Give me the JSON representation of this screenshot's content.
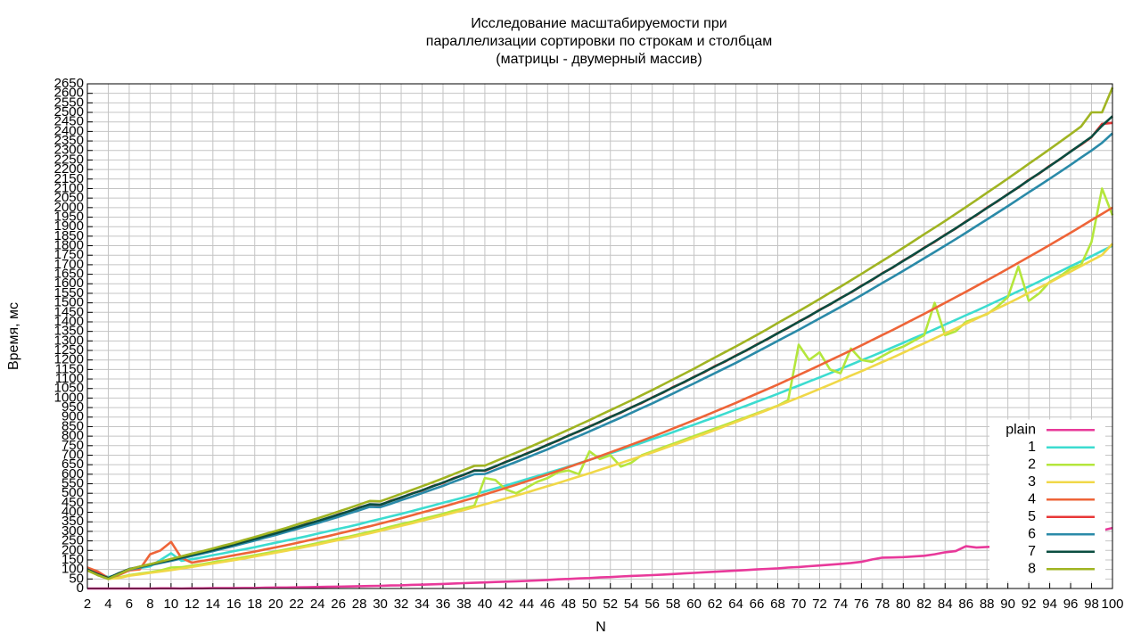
{
  "chart_data": {
    "type": "line",
    "title": [
      "Исследование масштабируемости при",
      "параллелизации сортировки по строкам и столбцам",
      "(матрицы - двумерный массив)"
    ],
    "xlabel": "N",
    "ylabel": "Время, мс",
    "x": [
      2,
      3,
      4,
      5,
      6,
      7,
      8,
      9,
      10,
      11,
      12,
      13,
      14,
      15,
      16,
      17,
      18,
      19,
      20,
      21,
      22,
      23,
      24,
      25,
      26,
      27,
      28,
      29,
      30,
      31,
      32,
      33,
      34,
      35,
      36,
      37,
      38,
      39,
      40,
      41,
      42,
      43,
      44,
      45,
      46,
      47,
      48,
      49,
      50,
      51,
      52,
      53,
      54,
      55,
      56,
      57,
      58,
      59,
      60,
      61,
      62,
      63,
      64,
      65,
      66,
      67,
      68,
      69,
      70,
      71,
      72,
      73,
      74,
      75,
      76,
      77,
      78,
      79,
      80,
      81,
      82,
      83,
      84,
      85,
      86,
      87,
      88,
      89,
      90,
      91,
      92,
      93,
      94,
      95,
      96,
      97,
      98,
      99,
      100
    ],
    "xlim": [
      2,
      100
    ],
    "xticks": [
      2,
      4,
      6,
      8,
      10,
      12,
      14,
      16,
      18,
      20,
      22,
      24,
      26,
      28,
      30,
      32,
      34,
      36,
      38,
      40,
      42,
      44,
      46,
      48,
      50,
      52,
      54,
      56,
      58,
      60,
      62,
      64,
      66,
      68,
      70,
      72,
      74,
      76,
      78,
      80,
      82,
      84,
      86,
      88,
      90,
      92,
      94,
      96,
      98,
      100
    ],
    "ylim": [
      0,
      2650
    ],
    "yticks": [
      0,
      50,
      100,
      150,
      200,
      250,
      300,
      350,
      400,
      450,
      500,
      550,
      600,
      650,
      700,
      750,
      800,
      850,
      900,
      950,
      1000,
      1050,
      1100,
      1150,
      1200,
      1250,
      1300,
      1350,
      1400,
      1450,
      1500,
      1550,
      1600,
      1650,
      1700,
      1750,
      1800,
      1850,
      1900,
      1950,
      2000,
      2050,
      2100,
      2150,
      2200,
      2250,
      2300,
      2350,
      2400,
      2450,
      2500,
      2550,
      2600,
      2650
    ],
    "grid": true,
    "legend": "lower right",
    "series": [
      {
        "name": "plain",
        "color": "#e8399a",
        "values": [
          0,
          0,
          0,
          0,
          0,
          0,
          0,
          1,
          1,
          0,
          1,
          1,
          2,
          2,
          2,
          3,
          3,
          4,
          5,
          5,
          6,
          7,
          8,
          9,
          10,
          11,
          12,
          13,
          14,
          16,
          17,
          19,
          20,
          22,
          24,
          26,
          28,
          30,
          32,
          34,
          36,
          38,
          40,
          42,
          45,
          48,
          50,
          53,
          55,
          58,
          60,
          63,
          66,
          68,
          70,
          73,
          76,
          79,
          82,
          85,
          88,
          91,
          94,
          97,
          100,
          103,
          106,
          110,
          113,
          117,
          121,
          125,
          129,
          134,
          140,
          152,
          162,
          163,
          165,
          168,
          172,
          180,
          190,
          196,
          222,
          215,
          218,
          220,
          230,
          238,
          245,
          252,
          258,
          264,
          272,
          282,
          292,
          305,
          318
        ]
      },
      {
        "name": "1",
        "color": "#3cdcd0",
        "values": [
          100,
          80,
          60,
          75,
          99,
          107,
          116,
          150,
          185,
          145,
          154,
          164,
          175,
          185,
          196,
          206,
          217,
          229,
          240,
          252,
          263,
          275,
          288,
          300,
          313,
          325,
          338,
          352,
          365,
          379,
          392,
          406,
          421,
          435,
          450,
          464,
          479,
          495,
          510,
          526,
          541,
          557,
          574,
          590,
          607,
          623,
          640,
          658,
          675,
          693,
          710,
          728,
          747,
          765,
          784,
          802,
          821,
          841,
          860,
          880,
          899,
          919,
          940,
          960,
          981,
          1001,
          1022,
          1044,
          1065,
          1087,
          1108,
          1130,
          1153,
          1175,
          1198,
          1220,
          1243,
          1267,
          1290,
          1314,
          1337,
          1361,
          1386,
          1410,
          1435,
          1459,
          1484,
          1510,
          1535,
          1561,
          1586,
          1612,
          1639,
          1665,
          1692,
          1718,
          1745,
          1773,
          1800
        ]
      },
      {
        "name": "2",
        "color": "#b4e63c",
        "values": [
          100,
          72,
          52,
          58,
          70,
          78,
          85,
          95,
          110,
          112,
          120,
          128,
          138,
          146,
          155,
          165,
          175,
          185,
          195,
          205,
          216,
          226,
          238,
          250,
          262,
          272,
          285,
          298,
          310,
          325,
          338,
          350,
          365,
          378,
          392,
          408,
          420,
          435,
          580,
          570,
          520,
          500,
          530,
          560,
          580,
          610,
          620,
          600,
          720,
          680,
          700,
          640,
          660,
          700,
          720,
          740,
          760,
          780,
          800,
          820,
          840,
          860,
          880,
          900,
          920,
          940,
          960,
          990,
          1280,
          1200,
          1240,
          1150,
          1130,
          1260,
          1200,
          1190,
          1220,
          1250,
          1270,
          1300,
          1330,
          1500,
          1330,
          1350,
          1400,
          1420,
          1440,
          1480,
          1530,
          1690,
          1510,
          1550,
          1610,
          1640,
          1680,
          1700,
          1820,
          2100,
          1960
        ]
      },
      {
        "name": "3",
        "color": "#f0d848",
        "values": [
          95,
          70,
          50,
          55,
          67,
          74,
          82,
          89,
          97,
          105,
          113,
          122,
          131,
          140,
          149,
          158,
          168,
          178,
          188,
          198,
          209,
          220,
          231,
          243,
          254,
          266,
          278,
          290,
          303,
          316,
          329,
          342,
          356,
          370,
          384,
          398,
          412,
          427,
          442,
          457,
          473,
          488,
          504,
          521,
          537,
          554,
          571,
          588,
          605,
          623,
          641,
          659,
          677,
          696,
          714,
          733,
          753,
          772,
          792,
          812,
          832,
          853,
          874,
          895,
          916,
          937,
          959,
          981,
          1003,
          1025,
          1048,
          1071,
          1094,
          1118,
          1141,
          1165,
          1189,
          1213,
          1238,
          1263,
          1288,
          1313,
          1339,
          1365,
          1391,
          1417,
          1443,
          1470,
          1497,
          1524,
          1552,
          1579,
          1607,
          1636,
          1664,
          1693,
          1722,
          1751,
          1810
        ]
      },
      {
        "name": "4",
        "color": "#ee6438",
        "values": [
          110,
          90,
          55,
          70,
          95,
          100,
          180,
          200,
          245,
          160,
          136,
          145,
          154,
          164,
          174,
          184,
          194,
          205,
          216,
          227,
          239,
          251,
          263,
          275,
          288,
          301,
          314,
          327,
          341,
          355,
          369,
          384,
          399,
          414,
          429,
          445,
          461,
          477,
          494,
          511,
          528,
          545,
          563,
          581,
          599,
          618,
          637,
          656,
          675,
          695,
          715,
          735,
          755,
          776,
          797,
          818,
          840,
          862,
          884,
          906,
          929,
          952,
          975,
          999,
          1023,
          1047,
          1071,
          1096,
          1121,
          1146,
          1172,
          1198,
          1224,
          1250,
          1277,
          1304,
          1331,
          1358,
          1386,
          1414,
          1442,
          1471,
          1500,
          1529,
          1558,
          1588,
          1618,
          1648,
          1679,
          1710,
          1741,
          1772,
          1804,
          1836,
          1868,
          1901,
          1934,
          1967,
          2000
        ]
      },
      {
        "name": "5",
        "color": "#e83838",
        "values": [
          95,
          80,
          55,
          78,
          100,
          112,
          125,
          140,
          148,
          160,
          178,
          190,
          200,
          214,
          232,
          243,
          258,
          277,
          292,
          304,
          320,
          340,
          352,
          369,
          390,
          404,
          426,
          440,
          438,
          461,
          476,
          499,
          514,
          538,
          554,
          579,
          596,
          621,
          618,
          640,
          666,
          684,
          710,
          729,
          756,
          776,
          804,
          824,
          852,
          873,
          902,
          923,
          952,
          974,
          1004,
          1027,
          1058,
          1081,
          1112,
          1136,
          1168,
          1192,
          1224,
          1249,
          1282,
          1308,
          1342,
          1368,
          1402,
          1429,
          1464,
          1491,
          1526,
          1554,
          1590,
          1619,
          1656,
          1685,
          1722,
          1752,
          1790,
          1820,
          1858,
          1889,
          1928,
          1960,
          2000,
          2032,
          2072,
          2105,
          2146,
          2179,
          2220,
          2254,
          2296,
          2330,
          2370,
          2440,
          2445
        ]
      },
      {
        "name": "6",
        "color": "#2a8aa8",
        "values": [
          100,
          70,
          52,
          80,
          99,
          110,
          122,
          134,
          145,
          158,
          171,
          183,
          196,
          210,
          223,
          238,
          252,
          267,
          281,
          297,
          312,
          328,
          343,
          360,
          376,
          394,
          411,
          429,
          427,
          445,
          464,
          482,
          501,
          520,
          539,
          560,
          580,
          600,
          601,
          623,
          644,
          665,
          687,
          709,
          731,
          755,
          778,
          801,
          825,
          849,
          873,
          897,
          922,
          947,
          972,
          998,
          1024,
          1051,
          1077,
          1104,
          1131,
          1158,
          1185,
          1213,
          1242,
          1271,
          1300,
          1329,
          1358,
          1388,
          1418,
          1448,
          1478,
          1509,
          1540,
          1572,
          1604,
          1636,
          1668,
          1701,
          1734,
          1767,
          1800,
          1834,
          1868,
          1903,
          1938,
          1973,
          2008,
          2044,
          2080,
          2116,
          2152,
          2188,
          2225,
          2263,
          2300,
          2340,
          2390
        ]
      },
      {
        "name": "7",
        "color": "#0a4d40",
        "values": [
          100,
          75,
          55,
          80,
          102,
          114,
          126,
          138,
          150,
          163,
          176,
          189,
          202,
          216,
          230,
          245,
          260,
          275,
          290,
          306,
          322,
          338,
          354,
          371,
          388,
          406,
          424,
          442,
          440,
          459,
          478,
          497,
          516,
          536,
          556,
          577,
          598,
          619,
          620,
          642,
          664,
          686,
          708,
          731,
          754,
          778,
          802,
          826,
          850,
          875,
          900,
          925,
          950,
          976,
          1002,
          1029,
          1056,
          1083,
          1110,
          1138,
          1166,
          1194,
          1222,
          1251,
          1280,
          1310,
          1340,
          1370,
          1400,
          1431,
          1462,
          1493,
          1524,
          1556,
          1588,
          1621,
          1654,
          1687,
          1720,
          1754,
          1788,
          1822,
          1856,
          1891,
          1926,
          1962,
          1998,
          2034,
          2070,
          2107,
          2144,
          2181,
          2218,
          2256,
          2294,
          2333,
          2372,
          2430,
          2480
        ]
      },
      {
        "name": "8",
        "color": "#a0b422",
        "values": [
          95,
          70,
          50,
          75,
          100,
          115,
          128,
          142,
          155,
          169,
          183,
          196,
          210,
          225,
          239,
          255,
          270,
          286,
          302,
          318,
          335,
          352,
          368,
          386,
          404,
          422,
          441,
          460,
          458,
          477,
          497,
          517,
          537,
          557,
          578,
          600,
          622,
          644,
          645,
          668,
          691,
          713,
          736,
          760,
          784,
          809,
          834,
          859,
          884,
          910,
          936,
          962,
          988,
          1015,
          1042,
          1070,
          1098,
          1126,
          1154,
          1184,
          1213,
          1242,
          1271,
          1301,
          1331,
          1362,
          1394,
          1425,
          1456,
          1488,
          1520,
          1553,
          1585,
          1618,
          1652,
          1686,
          1720,
          1754,
          1789,
          1824,
          1860,
          1895,
          1930,
          1967,
          2003,
          2040,
          2078,
          2115,
          2153,
          2191,
          2230,
          2268,
          2307,
          2346,
          2386,
          2426,
          2500,
          2500,
          2630
        ]
      }
    ]
  }
}
